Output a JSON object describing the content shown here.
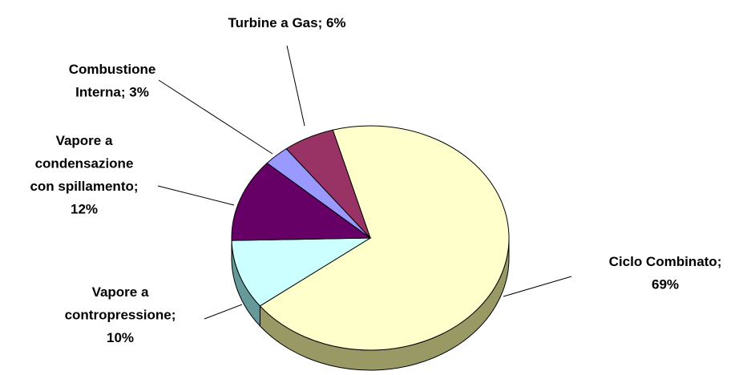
{
  "chart_data": {
    "type": "pie",
    "values": [
      69,
      10,
      12,
      3,
      6
    ],
    "value_labels": [
      "Ciclo Combinato; 69%",
      "Vapore a contropressione; 10%",
      "Vapore a condensazione con spillamento; 12%",
      "Combustione Interna; 3%",
      "Turbine a Gas; 6%"
    ],
    "colors": [
      "#FFFFCC",
      "#CCFFFF",
      "#660066",
      "#9999FF",
      "#993366"
    ],
    "side_colors": [
      "#999966",
      "#669999",
      "#330033",
      "#666699",
      "#663344"
    ]
  }
}
